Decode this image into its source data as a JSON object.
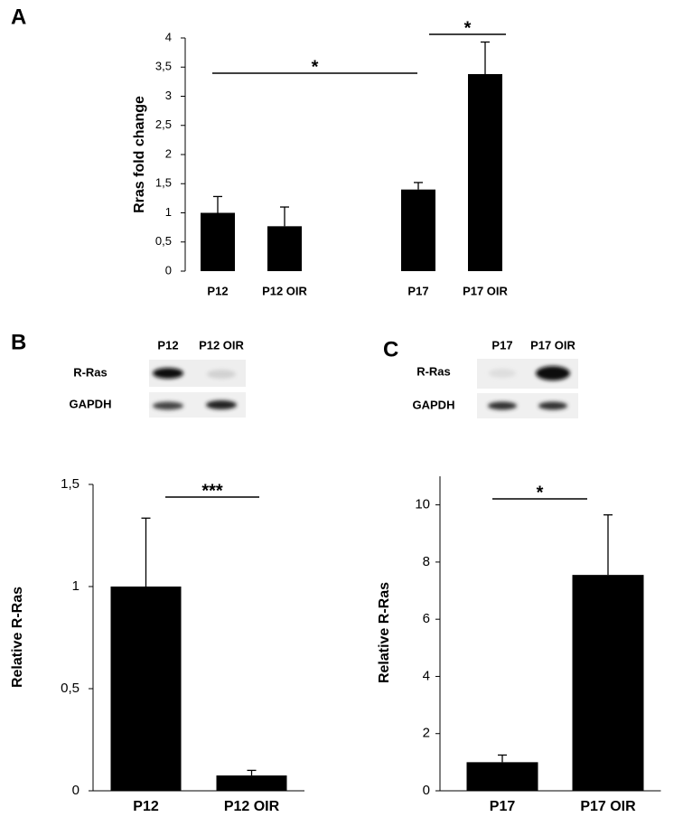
{
  "panels": [
    "A",
    "B",
    "C"
  ],
  "blots": [
    {
      "lanes": [
        "P12",
        "P12 OIR"
      ],
      "rows": [
        "R-Ras",
        "GAPDH"
      ]
    },
    {
      "lanes": [
        "P17",
        "P17 OIR"
      ],
      "rows": [
        "R-Ras",
        "GAPDH"
      ]
    }
  ],
  "chart_data": [
    {
      "type": "bar",
      "ylabel": "Rras fold change",
      "categories": [
        "P12",
        "P12 OIR",
        null,
        "P17",
        "P17 OIR"
      ],
      "values": [
        1.0,
        0.77,
        null,
        1.4,
        3.38
      ],
      "errors": [
        0.28,
        0.33,
        null,
        0.12,
        0.55
      ],
      "color": "#000000",
      "ylim": [
        0,
        4
      ],
      "yticks": [
        0,
        {
          "value": 0.5,
          "label": "0,5"
        },
        1,
        {
          "value": 1.5,
          "label": "1,5"
        },
        2,
        {
          "value": 2.5,
          "label": "2,5"
        },
        3,
        {
          "value": 3.5,
          "label": "3,5"
        },
        4
      ],
      "annotations": [
        "*",
        "*"
      ]
    },
    {
      "type": "bar",
      "ylabel": "Relative R-Ras",
      "categories": [
        "P12",
        "P12 OIR"
      ],
      "values": [
        1.0,
        0.075
      ],
      "errors": [
        0.335,
        0.025
      ],
      "color": "#000000",
      "ylim": [
        0,
        1.5
      ],
      "yticks": [
        0,
        {
          "value": 0.5,
          "label": "0,5"
        },
        1,
        {
          "value": 1.5,
          "label": "1,5"
        }
      ],
      "annotations": [
        "***"
      ]
    },
    {
      "type": "bar",
      "ylabel": "Relative R-Ras",
      "categories": [
        "P17",
        "P17 OIR"
      ],
      "values": [
        1.0,
        7.55
      ],
      "errors": [
        0.25,
        2.1
      ],
      "color": "#000000",
      "ylim": [
        0,
        11
      ],
      "yticks": [
        0,
        2,
        4,
        6,
        8,
        10
      ],
      "annotations": [
        "*"
      ]
    }
  ]
}
